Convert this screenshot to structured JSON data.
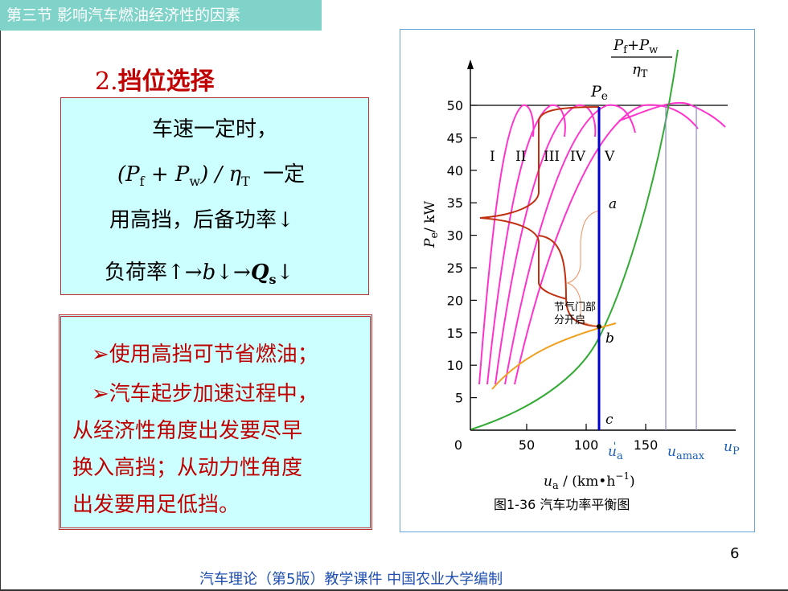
{
  "section_tag": "第三节 影响汽车燃油经济性的因素",
  "heading": {
    "num": "2.",
    "text": "挡位选择"
  },
  "box1": {
    "line1": "车速一定时，",
    "formula_tail": "一定",
    "line3": "用高挡，后备功率↓",
    "line4_pre": "负荷率↑→",
    "line4_b": "b",
    "line4_mid": "↓→",
    "line4_Q": "Q",
    "line4_s": "s",
    "line4_post": "↓"
  },
  "box2": {
    "bullet1": "➢使用高挡可节省燃油；",
    "bullet2": "➢汽车起步加速过程中，",
    "line3": "从经济性角度出发要尽早",
    "line4": "换入高挡；从动力性角度",
    "line5": "出发要用足低挡。"
  },
  "figure": {
    "caption": "图1-36 汽车功率平衡图",
    "gear_labels": [
      "I",
      "II",
      "III",
      "IV",
      "V"
    ],
    "point_labels": {
      "a": "a",
      "b": "b",
      "c": "c"
    },
    "pe_label": "P",
    "pe_sub": "e",
    "resistance_label": {
      "num": "P",
      "num_f": "f",
      "plus": "+P",
      "num_w": "w",
      "den": "η",
      "den_sub": "T"
    },
    "throttle_note": [
      "节气门部",
      "分开启"
    ],
    "x_axis": {
      "label_u": "u",
      "label_sub": "a",
      "label_unit": " / (km•h",
      "label_exp": "−1",
      "label_close": ")",
      "ticks": [
        "0",
        "50",
        "100",
        "150"
      ],
      "marks": [
        {
          "u": "u",
          "sub": "a",
          "prime": "'"
        },
        {
          "u": "u",
          "sub": "amax"
        },
        {
          "u": "u",
          "sub": "P"
        }
      ]
    },
    "y_axis": {
      "label_P": "P",
      "label_sub": "e",
      "label_unit": "/ kW",
      "ticks": [
        "5",
        "10",
        "15",
        "20",
        "25",
        "30",
        "35",
        "40",
        "45",
        "50"
      ]
    },
    "colors": {
      "gear_curves": "#ff33cc",
      "resistance": "#33aa33",
      "partial_throttle": "#f0a020",
      "brace": "#c03010",
      "marker": "#0000cc",
      "axis": "#000000"
    }
  },
  "page_number": "6",
  "footer": "汽车理论（第5版）教学课件 中国农业大学编制"
}
